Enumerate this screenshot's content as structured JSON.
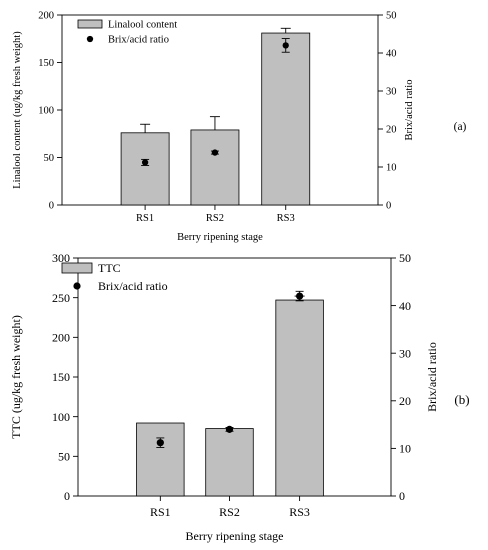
{
  "chart_data": [
    {
      "type": "bar",
      "panel_label": "(a)",
      "categories": [
        "RS1",
        "RS2",
        "RS3"
      ],
      "xlabel": "Berry ripening stage",
      "ylabel": "Linalool content (ug/kg fresh weight)",
      "ylabel2": "Brix/acid ratio",
      "ylim": [
        0,
        200
      ],
      "y_ticks": [
        0,
        50,
        100,
        150,
        200
      ],
      "ylim2": [
        0,
        50
      ],
      "y2_ticks": [
        0,
        10,
        20,
        30,
        40,
        50
      ],
      "legend_position": "top-left",
      "series": [
        {
          "name": "Linalool content",
          "kind": "bar",
          "axis": "left",
          "values": [
            76,
            79,
            181
          ],
          "errors": [
            9,
            14,
            5
          ]
        },
        {
          "name": "Brix/acid ratio",
          "kind": "scatter",
          "axis": "right",
          "values": [
            11.2,
            13.8,
            42
          ],
          "errors": [
            0.8,
            0.4,
            1.8
          ]
        }
      ]
    },
    {
      "type": "bar",
      "panel_label": "(b)",
      "categories": [
        "RS1",
        "RS2",
        "RS3"
      ],
      "xlabel": "Berry ripening stage",
      "ylabel": "TTC (ug/kg fresh weight)",
      "ylabel2": "Brix/acid ratio",
      "ylim": [
        0,
        300
      ],
      "y_ticks": [
        0,
        50,
        100,
        150,
        200,
        250,
        300
      ],
      "ylim2": [
        0,
        50
      ],
      "y2_ticks": [
        0,
        10,
        20,
        30,
        40,
        50
      ],
      "legend_position": "top-left",
      "series": [
        {
          "name": "TTC",
          "kind": "bar",
          "axis": "left",
          "values": [
            92,
            85,
            247
          ],
          "errors": [
            0,
            0,
            5
          ]
        },
        {
          "name": "Brix/acid ratio",
          "kind": "scatter",
          "axis": "right",
          "values": [
            11.2,
            14,
            42
          ],
          "errors": [
            1,
            0.4,
            1
          ]
        }
      ]
    }
  ]
}
